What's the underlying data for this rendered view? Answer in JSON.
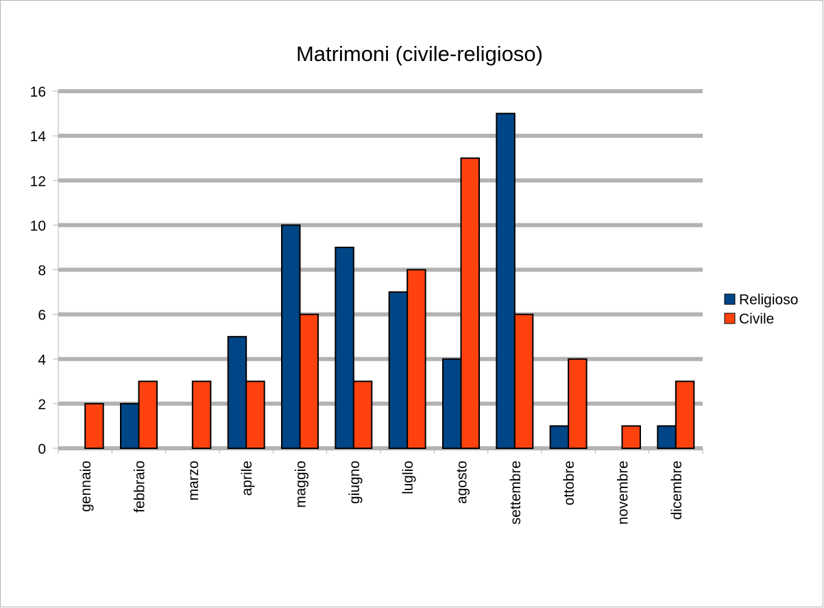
{
  "chart_data": {
    "type": "bar",
    "title": "Matrimoni (civile-religioso)",
    "xlabel": "",
    "ylabel": "",
    "categories": [
      "gennaio",
      "febbraio",
      "marzo",
      "aprile",
      "maggio",
      "giugno",
      "luglio",
      "agosto",
      "settembre",
      "ottobre",
      "novembre",
      "dicembre"
    ],
    "series": [
      {
        "name": "Religioso",
        "color": "#004586",
        "values": [
          0,
          2,
          0,
          5,
          10,
          9,
          7,
          4,
          15,
          1,
          0,
          1
        ]
      },
      {
        "name": "Civile",
        "color": "#ff420e",
        "values": [
          2,
          3,
          3,
          3,
          6,
          3,
          8,
          13,
          6,
          4,
          1,
          3
        ]
      }
    ],
    "ylim": [
      0,
      16
    ],
    "yticks": [
      0,
      2,
      4,
      6,
      8,
      10,
      12,
      14,
      16
    ],
    "grid": true,
    "gridline_color": "#b3b3b3",
    "legend_position": "right"
  }
}
